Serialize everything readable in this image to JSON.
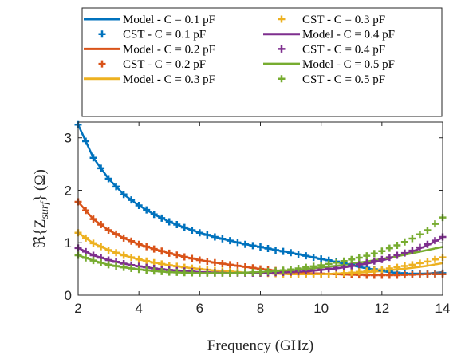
{
  "chart_data": {
    "type": "line",
    "xlabel": "Frequency (GHz)",
    "ylabel": "ℜ{Z",
    "ylabel_sub": "surf",
    "ylabel_tail": "} (Ω)",
    "xlim": [
      2,
      14
    ],
    "ylim": [
      0,
      3.3
    ],
    "xticks": [
      "2",
      "4",
      "6",
      "8",
      "10",
      "12",
      "14"
    ],
    "yticks": [
      "0",
      "1",
      "2",
      "3"
    ],
    "grid": false,
    "legend_position": "top",
    "x": [
      2,
      2.5,
      3,
      3.5,
      4,
      4.5,
      5,
      5.5,
      6,
      6.5,
      7,
      7.5,
      8,
      8.5,
      9,
      9.5,
      10,
      10.5,
      11,
      11.5,
      12,
      12.5,
      13,
      13.5,
      14
    ],
    "series": [
      {
        "name": "Model - C = 0.1 pF",
        "kind": "line",
        "color": "#0072BD",
        "values": [
          3.25,
          2.62,
          2.22,
          1.92,
          1.71,
          1.54,
          1.4,
          1.29,
          1.19,
          1.11,
          1.04,
          0.97,
          0.92,
          0.86,
          0.81,
          0.75,
          0.69,
          0.63,
          0.57,
          0.51,
          0.46,
          0.42,
          0.4,
          0.41,
          0.44
        ]
      },
      {
        "name": "CST - C = 0.1 pF",
        "kind": "marker",
        "color": "#0072BD",
        "values": [
          3.25,
          2.62,
          2.22,
          1.92,
          1.71,
          1.54,
          1.4,
          1.29,
          1.19,
          1.11,
          1.04,
          0.97,
          0.92,
          0.86,
          0.81,
          0.75,
          0.69,
          0.64,
          0.58,
          0.52,
          0.47,
          0.43,
          0.41,
          0.41,
          0.42
        ]
      },
      {
        "name": "Model - C = 0.2 pF",
        "kind": "line",
        "color": "#D95319",
        "values": [
          1.78,
          1.45,
          1.24,
          1.09,
          0.97,
          0.88,
          0.8,
          0.73,
          0.67,
          0.62,
          0.58,
          0.54,
          0.5,
          0.47,
          0.44,
          0.42,
          0.41,
          0.4,
          0.39,
          0.39,
          0.39,
          0.39,
          0.4,
          0.41,
          0.43
        ]
      },
      {
        "name": "CST - C = 0.2 pF",
        "kind": "marker",
        "color": "#D95319",
        "values": [
          1.78,
          1.45,
          1.24,
          1.09,
          0.97,
          0.88,
          0.8,
          0.73,
          0.67,
          0.62,
          0.58,
          0.54,
          0.5,
          0.47,
          0.44,
          0.42,
          0.41,
          0.4,
          0.39,
          0.38,
          0.38,
          0.38,
          0.39,
          0.4,
          0.4
        ]
      },
      {
        "name": "Model - C = 0.3 pF",
        "kind": "line",
        "color": "#EDB120",
        "values": [
          1.19,
          0.99,
          0.86,
          0.76,
          0.68,
          0.62,
          0.57,
          0.53,
          0.5,
          0.47,
          0.45,
          0.43,
          0.42,
          0.41,
          0.4,
          0.4,
          0.4,
          0.41,
          0.42,
          0.44,
          0.46,
          0.49,
          0.52,
          0.56,
          0.61
        ]
      },
      {
        "name": "CST - C = 0.3 pF",
        "kind": "marker",
        "color": "#EDB120",
        "values": [
          1.19,
          0.99,
          0.86,
          0.76,
          0.68,
          0.62,
          0.57,
          0.53,
          0.5,
          0.47,
          0.45,
          0.43,
          0.42,
          0.41,
          0.4,
          0.4,
          0.4,
          0.41,
          0.43,
          0.46,
          0.49,
          0.53,
          0.58,
          0.64,
          0.72
        ]
      },
      {
        "name": "Model - C = 0.4 pF",
        "kind": "line",
        "color": "#7E2F8E",
        "values": [
          0.9,
          0.76,
          0.67,
          0.6,
          0.55,
          0.51,
          0.48,
          0.46,
          0.44,
          0.43,
          0.42,
          0.42,
          0.42,
          0.42,
          0.43,
          0.45,
          0.48,
          0.51,
          0.55,
          0.6,
          0.66,
          0.74,
          0.83,
          0.95,
          1.1
        ]
      },
      {
        "name": "CST - C = 0.4 pF",
        "kind": "marker",
        "color": "#7E2F8E",
        "values": [
          0.9,
          0.76,
          0.67,
          0.6,
          0.55,
          0.51,
          0.48,
          0.46,
          0.44,
          0.43,
          0.42,
          0.42,
          0.42,
          0.43,
          0.44,
          0.46,
          0.49,
          0.52,
          0.56,
          0.62,
          0.68,
          0.76,
          0.85,
          0.97,
          1.11
        ]
      },
      {
        "name": "Model - C = 0.5 pF",
        "kind": "line",
        "color": "#77AC30",
        "values": [
          0.76,
          0.66,
          0.58,
          0.53,
          0.49,
          0.46,
          0.44,
          0.43,
          0.42,
          0.42,
          0.42,
          0.43,
          0.44,
          0.45,
          0.47,
          0.5,
          0.53,
          0.56,
          0.6,
          0.64,
          0.69,
          0.74,
          0.8,
          0.86,
          0.92
        ]
      },
      {
        "name": "CST - C = 0.5 pF",
        "kind": "marker",
        "color": "#77AC30",
        "values": [
          0.76,
          0.66,
          0.58,
          0.53,
          0.49,
          0.46,
          0.44,
          0.43,
          0.42,
          0.42,
          0.42,
          0.43,
          0.44,
          0.46,
          0.49,
          0.53,
          0.57,
          0.62,
          0.68,
          0.75,
          0.84,
          0.95,
          1.08,
          1.24,
          1.48
        ]
      }
    ]
  }
}
